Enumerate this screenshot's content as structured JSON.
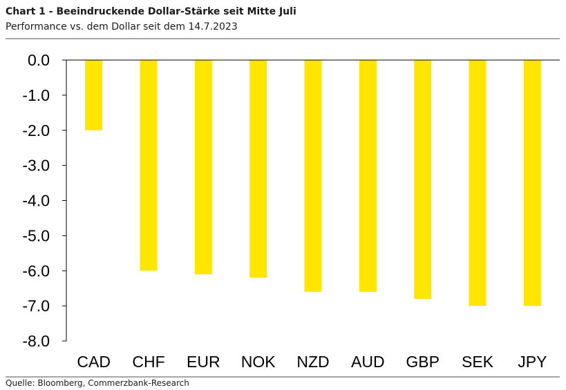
{
  "header": {
    "title": "Chart 1 - Beeindruckende Dollar-Stärke seit Mitte Juli",
    "subtitle": "Performance vs. dem Dollar seit dem 14.7.2023"
  },
  "footer": {
    "source": "Quelle: Bloomberg, Commerzbank-Research"
  },
  "colors": {
    "bar": "#ffe600",
    "axis": "#000000",
    "rule": "#a6a6a6"
  },
  "chart_data": {
    "type": "bar",
    "title": "Chart 1 - Beindruckende Dollar-Stärke seit Mitte Juli",
    "subtitle": "Performance vs. dem Dollar seit dem 14.7.2023",
    "xlabel": "",
    "ylabel": "",
    "categories": [
      "CAD",
      "CHF",
      "EUR",
      "NOK",
      "NZD",
      "AUD",
      "GBP",
      "SEK",
      "JPY"
    ],
    "values": [
      -2.0,
      -6.0,
      -6.1,
      -6.2,
      -6.6,
      -6.6,
      -6.8,
      -7.0,
      -7.0
    ],
    "ylim": [
      -8.0,
      0.0
    ],
    "yticks": [
      "0.0",
      "-1.0",
      "-2.0",
      "-3.0",
      "-4.0",
      "-5.0",
      "-6.0",
      "-7.0",
      "-8.0"
    ],
    "grid": false,
    "legend": "none"
  }
}
